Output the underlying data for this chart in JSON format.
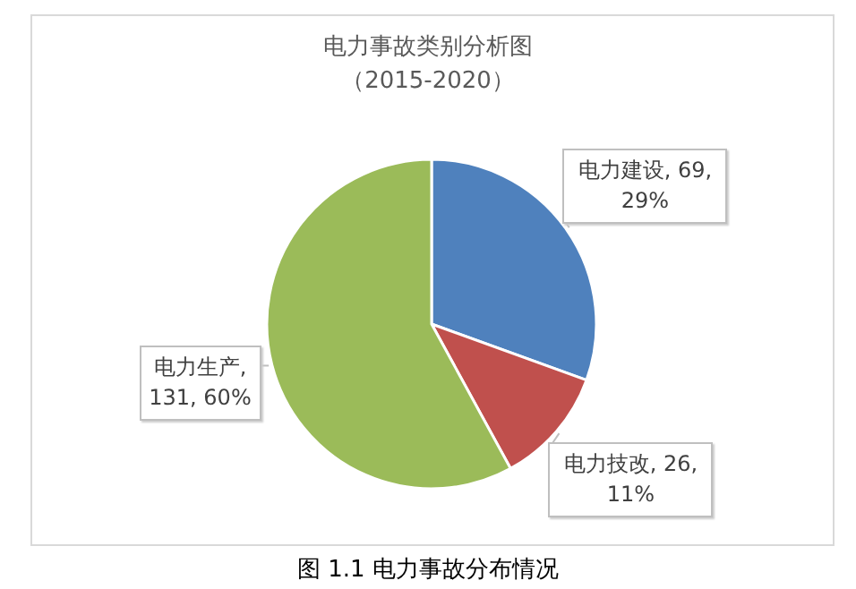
{
  "chart_data": {
    "type": "pie",
    "title": "电力事故类别分析图",
    "subtitle": "（2015-2020）",
    "categories": [
      "电力建设",
      "电力技改",
      "电力生产"
    ],
    "values": [
      69,
      26,
      131
    ],
    "value_labels": [
      ", 69, 29%",
      ", 26, 11%",
      ", 131, 60%"
    ],
    "colors": [
      "#4f81bd",
      "#c0504d",
      "#9bbb59"
    ],
    "annotations": [
      "图 1.1 电力事故分布情况"
    ]
  }
}
